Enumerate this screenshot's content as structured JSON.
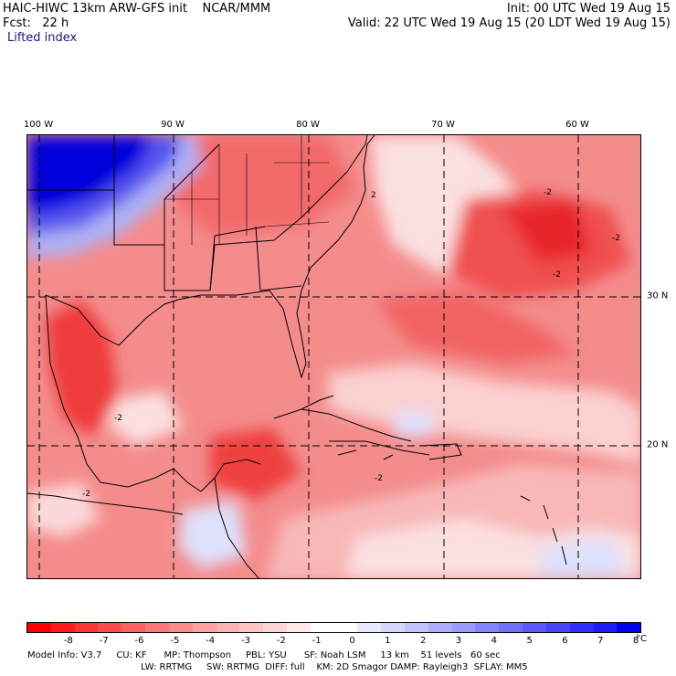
{
  "header": {
    "title": "HAIC-HIWC 13km ARW-GFS init    NCAR/MMM",
    "forecast": "Fcst:   22 h",
    "field": "Lifted index",
    "init": "Init: 00 UTC Wed 19 Aug 15",
    "valid": "Valid: 22 UTC Wed 19 Aug 15 (20 LDT Wed 19 Aug 15)"
  },
  "map": {
    "lon_labels": [
      "100 W",
      "90 W",
      "80 W",
      "70 W",
      "60 W"
    ],
    "lat_labels": [
      "30 N",
      "20 N"
    ],
    "contour_labels": [
      "-2",
      "2",
      "-2",
      "-2",
      "-2",
      "-2",
      "-2"
    ],
    "colors": {
      "deep_red": "#e8191b",
      "red": "#f25a5a",
      "mid_red": "#f48c8c",
      "light_red": "#f8b8b8",
      "pale_red": "#fbe0e0",
      "white": "#ffffff",
      "pale_blue": "#dfe0fb",
      "light_blue": "#aeb0f5",
      "blue": "#5555ee",
      "deep_blue": "#0000dd",
      "coast": "#000000"
    }
  },
  "colorbar": {
    "labels": [
      "-8",
      "-7",
      "-6",
      "-5",
      "-4",
      "-3",
      "-2",
      "-1",
      "0",
      "1",
      "2",
      "3",
      "4",
      "5",
      "6",
      "7",
      "8"
    ],
    "unit": "°C",
    "colors": [
      "#ff0000",
      "#ff1c1c",
      "#ff3535",
      "#ff4c4c",
      "#ff6262",
      "#ff7878",
      "#ff8c8c",
      "#ff9f9f",
      "#ffb2b2",
      "#ffc4c4",
      "#ffd6d6",
      "#ffe8e8",
      "#ffffff",
      "#ffffff",
      "#eaeaff",
      "#d6d6ff",
      "#c2c2ff",
      "#adadff",
      "#9a9aff",
      "#8585ff",
      "#7070ff",
      "#5a5aff",
      "#4545ff",
      "#3030ff",
      "#1c1cff",
      "#0000ee"
    ]
  },
  "model_info": {
    "line1": "Model Info: V3.7     CU: KF      MP: Thompson     PBL: YSU      SF: Noah LSM     13 km    51 levels   60 sec",
    "line2": "LW: RRTMG     SW: RRTMG  DIFF: full    KM: 2D Smagor DAMP: Rayleigh3  SFLAY: MM5"
  }
}
